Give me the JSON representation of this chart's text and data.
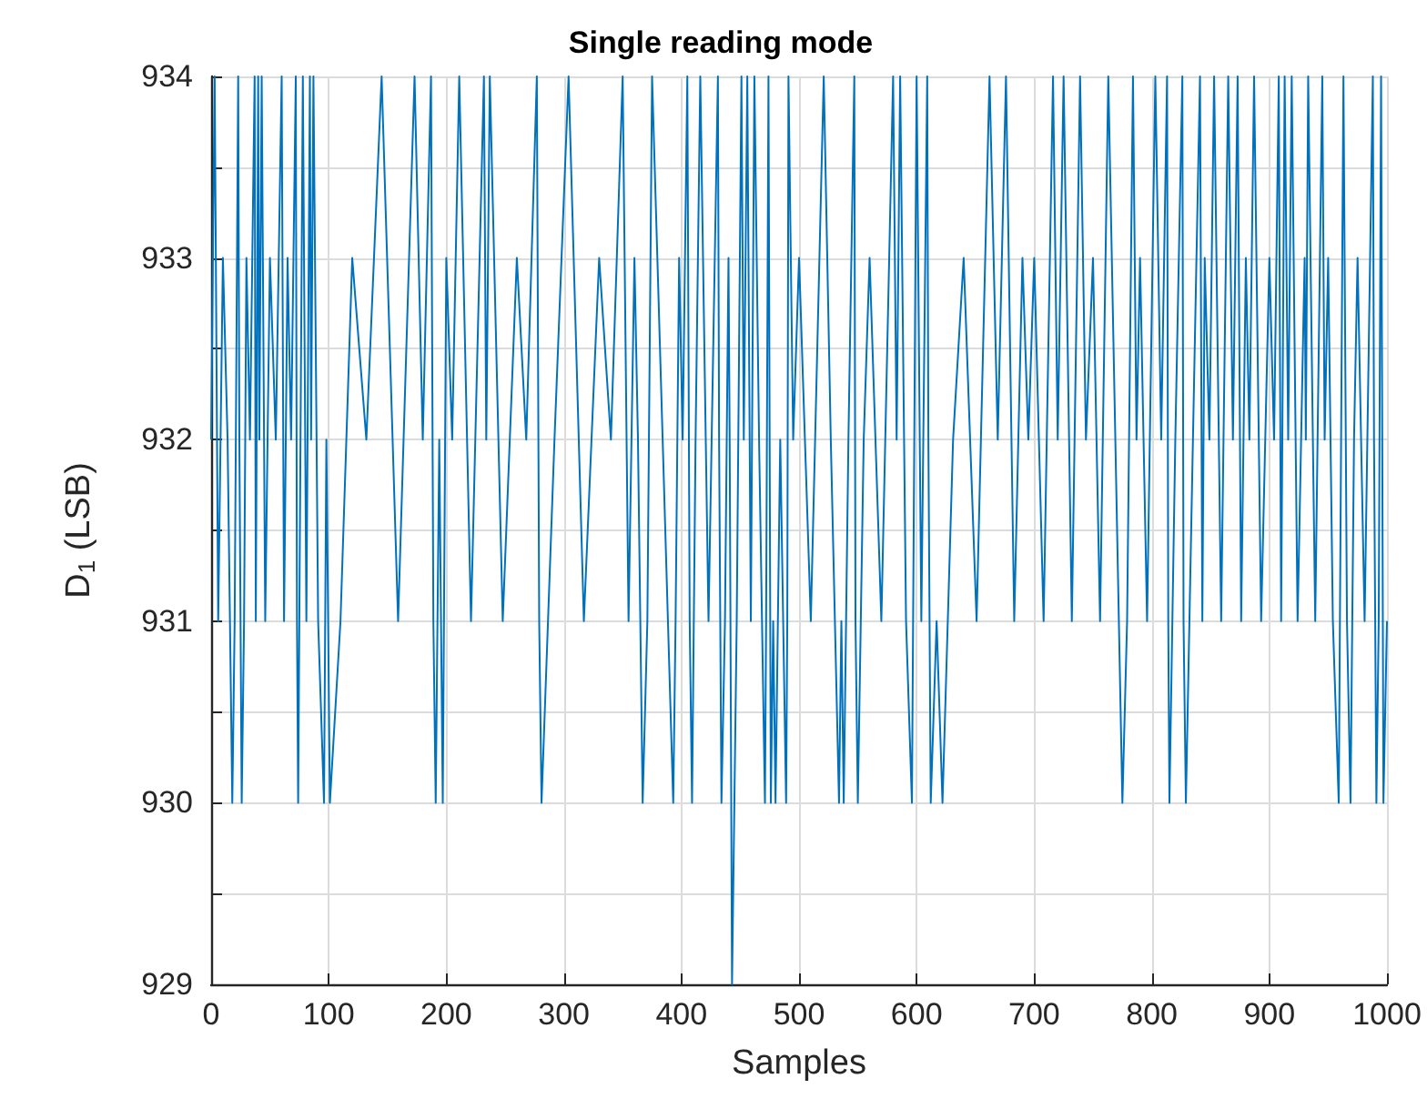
{
  "chart_data": {
    "type": "line",
    "title": "Single reading mode",
    "xlabel": "Samples",
    "ylabel": "D$_{1}$ (LSB)",
    "xlim": [
      0,
      1000
    ],
    "xticks": [
      0,
      100,
      200,
      300,
      400,
      500,
      600,
      700,
      800,
      900,
      1000
    ],
    "ylim": [
      929,
      934
    ],
    "yticks": [
      929,
      {
        "value": 929.5,
        "label": null
      },
      930,
      {
        "value": 930.5,
        "label": null
      },
      931,
      {
        "value": 931.5,
        "label": null
      },
      932,
      {
        "value": 932.5,
        "label": null
      },
      933,
      {
        "value": 933.5,
        "label": null
      },
      934
    ],
    "grid": true,
    "marker": "none",
    "line_style": "solid",
    "series": [
      {
        "color": "#0072bd",
        "x": [
          0,
          3,
          6,
          10,
          14,
          18,
          20,
          23,
          24,
          26,
          28,
          30,
          33,
          37,
          38,
          40,
          41,
          43,
          46,
          50,
          55,
          60,
          62,
          65,
          68,
          72,
          73,
          74,
          76,
          78,
          81,
          84,
          85,
          87,
          91,
          96,
          98,
          101,
          110,
          120,
          132,
          145,
          159,
          173,
          180,
          187,
          189,
          191,
          194,
          197,
          198,
          200,
          205,
          211,
          221,
          232,
          234,
          237,
          248,
          260,
          268,
          277,
          279,
          281,
          292,
          304,
          317,
          330,
          340,
          350,
          355,
          360,
          363,
          367,
          371,
          375,
          384,
          393,
          395,
          398,
          401,
          405,
          407,
          409,
          412,
          416,
          423,
          431,
          432,
          434,
          437,
          440,
          441,
          443,
          447,
          451,
          453,
          456,
          459,
          462,
          466,
          471,
          472,
          474,
          475,
          476,
          478,
          480,
          484,
          489,
          490,
          491,
          495,
          500,
          510,
          521,
          527,
          534,
          536,
          538,
          542,
          547,
          548,
          550,
          555,
          560,
          570,
          580,
          583,
          586,
          591,
          596,
          598,
          600,
          604,
          609,
          610,
          612,
          617,
          622,
          631,
          640,
          651,
          662,
          669,
          676,
          683,
          690,
          695,
          700,
          708,
          716,
          720,
          725,
          732,
          739,
          744,
          750,
          756,
          763,
          769,
          775,
          779,
          784,
          787,
          790,
          796,
          803,
          808,
          813,
          814,
          815,
          820,
          826,
          827,
          829,
          835,
          841,
          843,
          845,
          849,
          853,
          859,
          865,
          869,
          873,
          876,
          880,
          883,
          887,
          893,
          900,
          904,
          908,
          910,
          913,
          916,
          919,
          924,
          930,
          931,
          933,
          939,
          945,
          947,
          950,
          954,
          959,
          961,
          963,
          966,
          969,
          972,
          975,
          981,
          988,
          989,
          991,
          993,
          995,
          996,
          997,
          1000
        ],
        "values": [
          932,
          934,
          931,
          933,
          932,
          930,
          931,
          934,
          932,
          930,
          931,
          933,
          932,
          934,
          931,
          934,
          932,
          934,
          931,
          933,
          932,
          934,
          931,
          933,
          932,
          934,
          931,
          930,
          932,
          934,
          931,
          934,
          932,
          934,
          931,
          930,
          932,
          930,
          931,
          933,
          932,
          934,
          931,
          934,
          932,
          934,
          931,
          930,
          932,
          930,
          931,
          933,
          932,
          934,
          931,
          934,
          932,
          934,
          931,
          933,
          932,
          934,
          931,
          930,
          932,
          934,
          931,
          933,
          932,
          934,
          931,
          933,
          932,
          930,
          931,
          934,
          932,
          930,
          931,
          933,
          932,
          934,
          931,
          930,
          932,
          934,
          931,
          934,
          932,
          930,
          931,
          933,
          932,
          929,
          931,
          934,
          932,
          934,
          931,
          934,
          932,
          930,
          931,
          934,
          932,
          930,
          931,
          930,
          932,
          930,
          931,
          934,
          932,
          933,
          931,
          934,
          932,
          930,
          931,
          930,
          932,
          934,
          931,
          930,
          932,
          933,
          931,
          934,
          932,
          934,
          931,
          930,
          932,
          934,
          931,
          934,
          932,
          930,
          931,
          930,
          932,
          933,
          931,
          934,
          932,
          934,
          931,
          933,
          932,
          933,
          931,
          934,
          932,
          934,
          931,
          934,
          932,
          933,
          931,
          934,
          932,
          930,
          931,
          934,
          932,
          933,
          931,
          934,
          932,
          934,
          931,
          930,
          932,
          934,
          931,
          930,
          932,
          934,
          931,
          933,
          932,
          934,
          931,
          934,
          932,
          934,
          931,
          933,
          932,
          934,
          931,
          933,
          932,
          934,
          931,
          934,
          932,
          934,
          931,
          933,
          932,
          934,
          931,
          934,
          932,
          933,
          931,
          930,
          932,
          934,
          931,
          930,
          932,
          933,
          931,
          934,
          932,
          930,
          931,
          934,
          932,
          930,
          931
        ]
      }
    ]
  }
}
